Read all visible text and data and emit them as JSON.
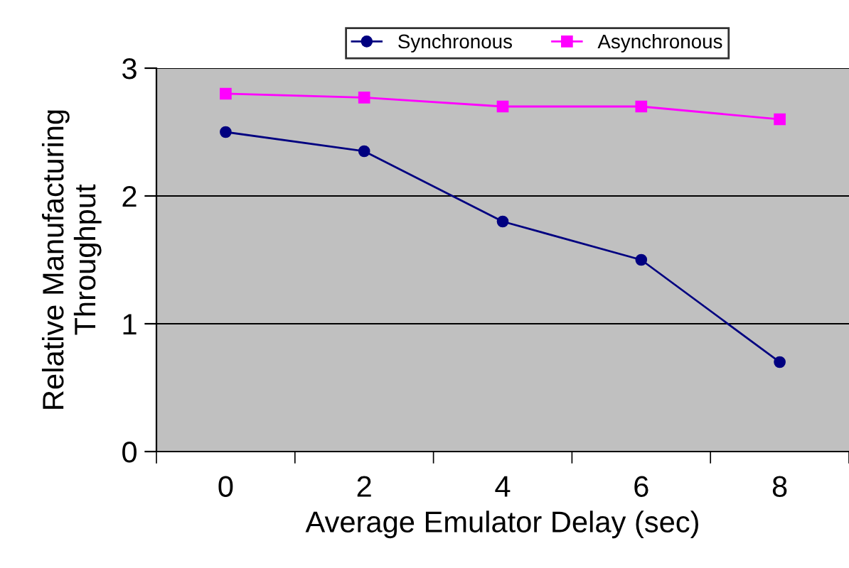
{
  "chart_data": {
    "type": "line",
    "xlabel": "Average Emulator Delay (sec)",
    "ylabel": "Relative Manufacturing\nThroughput",
    "categories": [
      "0",
      "2",
      "4",
      "6",
      "8"
    ],
    "series": [
      {
        "name": "Synchronous",
        "color": "#000080",
        "values": [
          2.5,
          2.35,
          1.8,
          1.5,
          0.7
        ],
        "marker": "circle"
      },
      {
        "name": "Asynchronous",
        "color": "#ff00ff",
        "values": [
          2.8,
          2.77,
          2.7,
          2.7,
          2.6
        ],
        "marker": "square"
      }
    ],
    "ylim": [
      0,
      3
    ],
    "yticks": [
      0,
      1,
      2,
      3
    ],
    "grid": "y",
    "legend": "top",
    "line_style": "solid"
  }
}
